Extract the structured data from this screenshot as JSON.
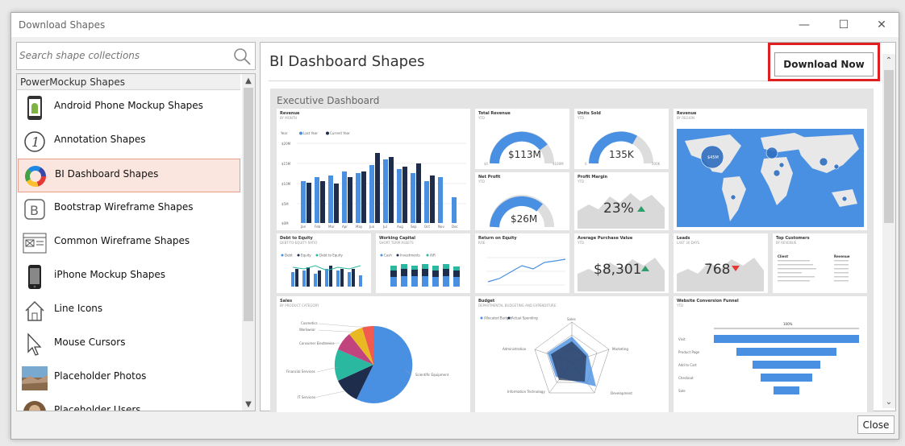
{
  "window": {
    "title": "Download Shapes",
    "minimize": "—",
    "maximize": "☐",
    "close": "✕"
  },
  "search": {
    "placeholder": "Search shape collections"
  },
  "list": {
    "header": "PowerMockup Shapes",
    "items": [
      {
        "label": "Android Phone Mockup Shapes",
        "icon": "android-phone-icon"
      },
      {
        "label": "Annotation Shapes",
        "icon": "annotation-icon"
      },
      {
        "label": "BI Dashboard Shapes",
        "icon": "donut-chart-icon",
        "selected": true
      },
      {
        "label": "Bootstrap Wireframe Shapes",
        "icon": "bootstrap-icon"
      },
      {
        "label": "Common Wireframe Shapes",
        "icon": "wireframe-window-icon"
      },
      {
        "label": "iPhone Mockup Shapes",
        "icon": "iphone-icon"
      },
      {
        "label": "Line Icons",
        "icon": "house-line-icon"
      },
      {
        "label": "Mouse Cursors",
        "icon": "cursor-icon"
      },
      {
        "label": "Placeholder Photos",
        "icon": "photo-icon"
      },
      {
        "label": "Placeholder Users",
        "icon": "user-photo-icon"
      }
    ]
  },
  "detail": {
    "title": "BI Dashboard Shapes",
    "download_label": "Download Now"
  },
  "preview": {
    "title": "Executive Dashboard",
    "revenue": {
      "title": "Revenue",
      "subtitle": "BY MONTH",
      "legend": [
        "Year",
        "Last Year",
        "Current Year"
      ],
      "months": [
        "Jan",
        "Feb",
        "Mar",
        "Apr",
        "May",
        "Jun",
        "Jul",
        "Aug",
        "Sep",
        "Oct",
        "Nov",
        "Dec"
      ],
      "yticks": [
        "$20M",
        "$15M",
        "$10M",
        "$5M",
        "$0M"
      ]
    },
    "total_revenue": {
      "title": "Total Revenue",
      "subtitle": "YTD",
      "value": "$113M",
      "min": "$0",
      "max": "$160M"
    },
    "units_sold": {
      "title": "Units Sold",
      "subtitle": "YTD",
      "value": "135K",
      "min": "0",
      "max": "200K"
    },
    "revenue_region": {
      "title": "Revenue",
      "subtitle": "BY REGION",
      "bubble": "$45M"
    },
    "net_profit": {
      "title": "Net Profit",
      "subtitle": "YTD",
      "value": "$26M"
    },
    "profit_margin": {
      "title": "Profit Margin",
      "subtitle": "YTD",
      "value": "23%"
    },
    "debt_equity": {
      "title": "Debt to Equity",
      "subtitle": "DEBT-TO-EQUITY RATIO",
      "legend": [
        "Debt",
        "Equity",
        "Debt to Equity"
      ]
    },
    "working_capital": {
      "title": "Working Capital",
      "subtitle": "SHORT TERM ASSETS",
      "legend": [
        "Cash",
        "Investments",
        "A/R"
      ]
    },
    "roe": {
      "title": "Return on Equity",
      "subtitle": "ROE"
    },
    "avg_purchase": {
      "title": "Average Purchase Value",
      "subtitle": "YTD",
      "value": "$8,301"
    },
    "leads": {
      "title": "Leads",
      "subtitle": "LAST 30 DAYS",
      "value": "768"
    },
    "top_customers": {
      "title": "Top Customers",
      "subtitle": "BY REVENUE",
      "cols": [
        "Client",
        "Revenue"
      ]
    },
    "sales": {
      "title": "Sales",
      "subtitle": "BY PRODUCT CATEGORY",
      "labels": [
        "Cosmetics",
        "Workwear",
        "Consumer Electronics",
        "Financial Services",
        "IT Services",
        "Scientific Equipment"
      ]
    },
    "budget": {
      "title": "Budget",
      "subtitle": "DEPARTMENTAL BUDGETING AND EXPENDITURE",
      "legend": [
        "Allocated Budget",
        "Actual Spending"
      ],
      "axes": [
        "Sales",
        "Marketing",
        "Development",
        "Information Technology",
        "Administration"
      ]
    },
    "funnel": {
      "title": "Website Conversion Funnel",
      "subtitle": "YTD",
      "top": "100%",
      "stages": [
        "Visit",
        "Product Page",
        "Add to Cart",
        "Checkout",
        "Sale"
      ]
    }
  },
  "footer": {
    "close_label": "Close"
  },
  "colors": {
    "accent": "#4a90e2",
    "selected_bg": "#fbe6df",
    "highlight": "#e02020"
  }
}
